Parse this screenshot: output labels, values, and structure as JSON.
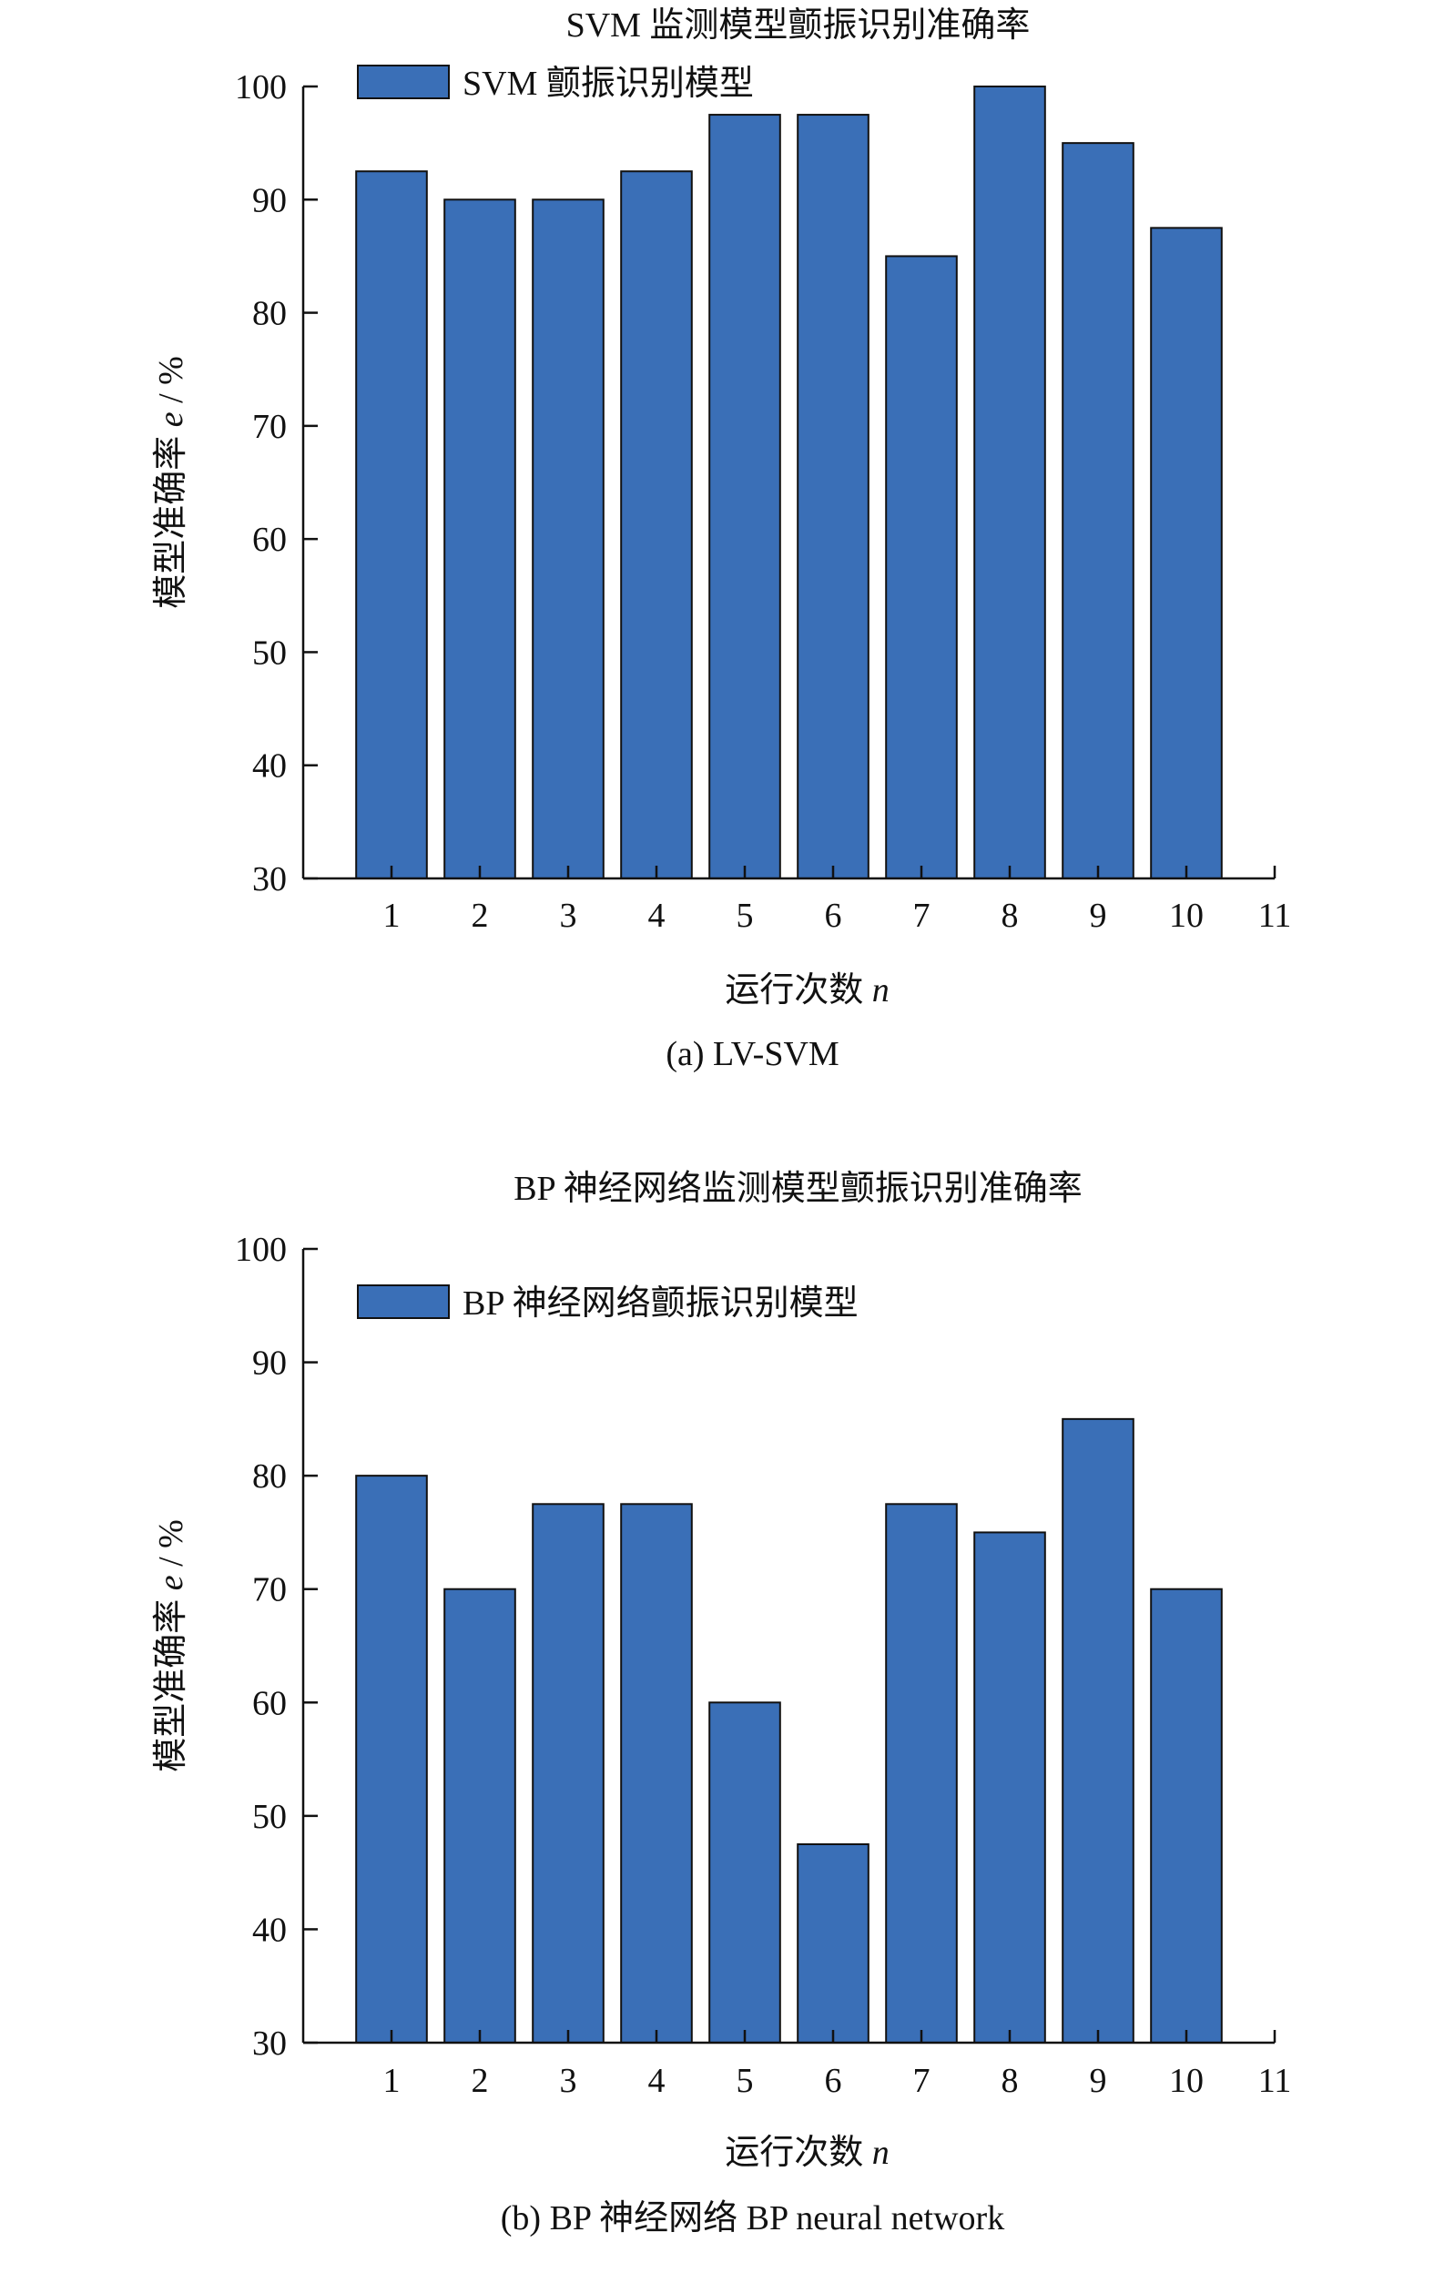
{
  "chart_data": [
    {
      "type": "bar",
      "title": "SVM 监测模型颤振识别准确率",
      "legend": {
        "label": "SVM 颤振识别模型",
        "placement": "top-left"
      },
      "xlabel": "运行次数",
      "xlabel_var": "n",
      "ylabel": "模型准确率",
      "ylabel_var": "e",
      "ylabel_unit": " / %",
      "caption": "(a) LV-SVM",
      "categories": [
        1,
        2,
        3,
        4,
        5,
        6,
        7,
        8,
        9,
        10
      ],
      "x_ticks": [
        1,
        2,
        3,
        4,
        5,
        6,
        7,
        8,
        9,
        10,
        11
      ],
      "values": [
        92.5,
        90,
        90,
        92.5,
        97.5,
        97.5,
        85,
        100,
        95,
        87.5
      ],
      "ylim": [
        30,
        100
      ],
      "y_ticks": [
        30,
        40,
        50,
        60,
        70,
        80,
        90,
        100
      ],
      "bar_color": "#3a6fb7",
      "grid": false
    },
    {
      "type": "bar",
      "title": "BP 神经网络监测模型颤振识别准确率",
      "legend": {
        "label": "BP 神经网络颤振识别模型",
        "placement": "top-left"
      },
      "xlabel": "运行次数",
      "xlabel_var": "n",
      "ylabel": "模型准确率",
      "ylabel_var": "e",
      "ylabel_unit": " / %",
      "caption": "(b) BP 神经网络 BP neural network",
      "categories": [
        1,
        2,
        3,
        4,
        5,
        6,
        7,
        8,
        9,
        10
      ],
      "x_ticks": [
        1,
        2,
        3,
        4,
        5,
        6,
        7,
        8,
        9,
        10,
        11
      ],
      "values": [
        80,
        70,
        77.5,
        77.5,
        60,
        47.5,
        77.5,
        75,
        85,
        70
      ],
      "ylim": [
        30,
        100
      ],
      "y_ticks": [
        30,
        40,
        50,
        60,
        70,
        80,
        90,
        100
      ],
      "bar_color": "#3a6fb7",
      "grid": false
    }
  ]
}
